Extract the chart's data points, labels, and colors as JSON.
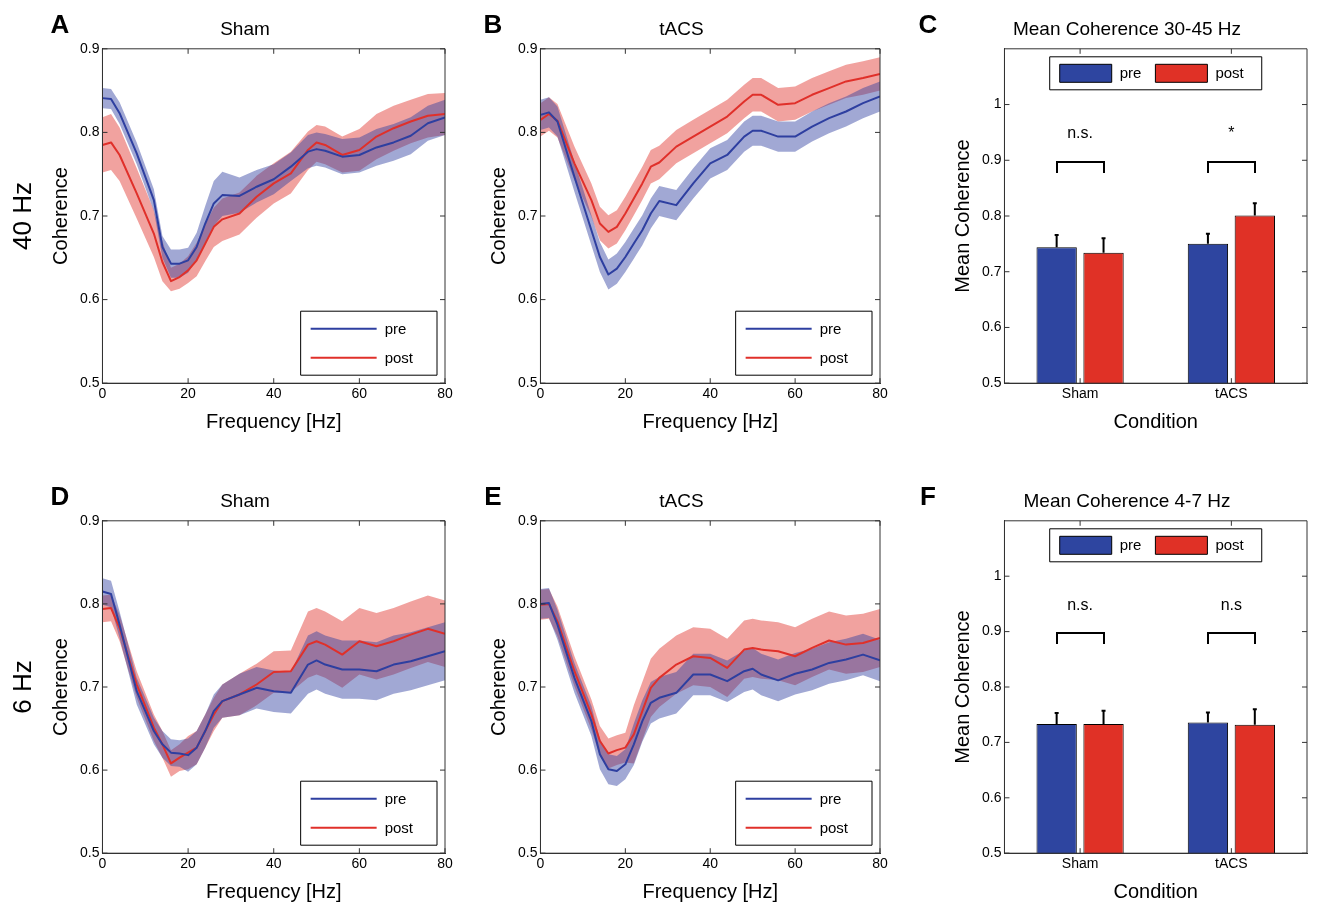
{
  "chart_data": [
    {
      "type": "line",
      "title": "Sham",
      "xlabel": "Frequency [Hz]",
      "ylabel": "Coherence",
      "annotations": [
        "A",
        "40 Hz"
      ],
      "legend": "bottom right",
      "xlim": [
        0,
        80
      ],
      "xticks": [
        0,
        20,
        40,
        60,
        80
      ],
      "ylim": [
        0.5,
        0.9
      ],
      "yticks": [
        0.5,
        0.6,
        0.7,
        0.8,
        0.9
      ],
      "x": [
        0,
        2,
        4,
        8,
        12,
        14,
        16,
        18,
        20,
        22,
        24,
        26,
        28,
        32,
        36,
        40,
        44,
        48,
        50,
        52,
        56,
        60,
        64,
        68,
        72,
        76,
        80
      ],
      "series": [
        {
          "name": "pre",
          "color": "#2e3fa0",
          "values": [
            0.841,
            0.84,
            0.823,
            0.775,
            0.719,
            0.663,
            0.643,
            0.643,
            0.647,
            0.663,
            0.691,
            0.715,
            0.725,
            0.724,
            0.735,
            0.744,
            0.759,
            0.777,
            0.78,
            0.778,
            0.771,
            0.773,
            0.782,
            0.788,
            0.796,
            0.811,
            0.818
          ],
          "lower": [
            0.829,
            0.828,
            0.81,
            0.762,
            0.706,
            0.65,
            0.626,
            0.626,
            0.632,
            0.648,
            0.668,
            0.688,
            0.7,
            0.704,
            0.716,
            0.726,
            0.742,
            0.757,
            0.76,
            0.758,
            0.75,
            0.752,
            0.76,
            0.766,
            0.774,
            0.79,
            0.797
          ],
          "upper": [
            0.853,
            0.852,
            0.836,
            0.788,
            0.732,
            0.676,
            0.66,
            0.66,
            0.662,
            0.68,
            0.712,
            0.742,
            0.753,
            0.746,
            0.755,
            0.762,
            0.776,
            0.797,
            0.8,
            0.798,
            0.792,
            0.794,
            0.804,
            0.81,
            0.818,
            0.832,
            0.839
          ]
        },
        {
          "name": "post",
          "color": "#e0302a",
          "values": [
            0.785,
            0.788,
            0.773,
            0.727,
            0.679,
            0.645,
            0.622,
            0.627,
            0.635,
            0.647,
            0.667,
            0.687,
            0.696,
            0.703,
            0.723,
            0.739,
            0.751,
            0.779,
            0.788,
            0.785,
            0.773,
            0.779,
            0.795,
            0.805,
            0.813,
            0.82,
            0.822
          ],
          "lower": [
            0.752,
            0.755,
            0.742,
            0.697,
            0.651,
            0.622,
            0.61,
            0.613,
            0.62,
            0.628,
            0.646,
            0.663,
            0.67,
            0.678,
            0.698,
            0.715,
            0.727,
            0.755,
            0.765,
            0.762,
            0.752,
            0.754,
            0.768,
            0.778,
            0.787,
            0.794,
            0.797
          ],
          "upper": [
            0.818,
            0.822,
            0.806,
            0.757,
            0.707,
            0.67,
            0.638,
            0.643,
            0.652,
            0.668,
            0.69,
            0.71,
            0.721,
            0.728,
            0.748,
            0.763,
            0.777,
            0.801,
            0.809,
            0.807,
            0.795,
            0.804,
            0.822,
            0.832,
            0.839,
            0.846,
            0.847
          ]
        }
      ]
    },
    {
      "type": "line",
      "title": "tACS",
      "xlabel": "Frequency [Hz]",
      "ylabel": "Coherence",
      "annotations": [
        "B"
      ],
      "legend": "bottom right",
      "xlim": [
        0,
        80
      ],
      "xticks": [
        0,
        20,
        40,
        60,
        80
      ],
      "ylim": [
        0.5,
        0.9
      ],
      "yticks": [
        0.5,
        0.6,
        0.7,
        0.8,
        0.9
      ],
      "x": [
        0,
        2,
        4,
        8,
        12,
        14,
        16,
        18,
        20,
        22,
        24,
        26,
        28,
        32,
        36,
        40,
        44,
        48,
        50,
        52,
        56,
        60,
        64,
        68,
        72,
        76,
        80
      ],
      "series": [
        {
          "name": "pre",
          "color": "#2e3fa0",
          "values": [
            0.821,
            0.824,
            0.813,
            0.747,
            0.683,
            0.651,
            0.63,
            0.637,
            0.651,
            0.667,
            0.683,
            0.703,
            0.718,
            0.713,
            0.739,
            0.763,
            0.773,
            0.795,
            0.802,
            0.802,
            0.795,
            0.795,
            0.807,
            0.817,
            0.825,
            0.835,
            0.843
          ],
          "lower": [
            0.803,
            0.806,
            0.795,
            0.729,
            0.665,
            0.633,
            0.612,
            0.619,
            0.633,
            0.649,
            0.665,
            0.685,
            0.7,
            0.695,
            0.721,
            0.745,
            0.755,
            0.777,
            0.784,
            0.784,
            0.777,
            0.777,
            0.789,
            0.799,
            0.807,
            0.817,
            0.825
          ],
          "upper": [
            0.839,
            0.842,
            0.831,
            0.765,
            0.701,
            0.669,
            0.648,
            0.655,
            0.669,
            0.685,
            0.701,
            0.721,
            0.736,
            0.731,
            0.757,
            0.781,
            0.791,
            0.813,
            0.82,
            0.82,
            0.813,
            0.813,
            0.825,
            0.835,
            0.843,
            0.853,
            0.861
          ]
        },
        {
          "name": "post",
          "color": "#e0302a",
          "values": [
            0.815,
            0.822,
            0.814,
            0.763,
            0.719,
            0.691,
            0.681,
            0.687,
            0.703,
            0.721,
            0.739,
            0.759,
            0.764,
            0.783,
            0.795,
            0.807,
            0.819,
            0.837,
            0.845,
            0.845,
            0.833,
            0.835,
            0.845,
            0.853,
            0.861,
            0.865,
            0.87
          ],
          "lower": [
            0.795,
            0.802,
            0.794,
            0.743,
            0.699,
            0.671,
            0.661,
            0.667,
            0.683,
            0.701,
            0.719,
            0.739,
            0.744,
            0.763,
            0.775,
            0.787,
            0.799,
            0.817,
            0.825,
            0.825,
            0.813,
            0.815,
            0.825,
            0.833,
            0.841,
            0.845,
            0.85
          ],
          "upper": [
            0.835,
            0.842,
            0.834,
            0.783,
            0.739,
            0.711,
            0.701,
            0.707,
            0.723,
            0.741,
            0.759,
            0.779,
            0.784,
            0.803,
            0.815,
            0.827,
            0.839,
            0.857,
            0.865,
            0.865,
            0.853,
            0.855,
            0.865,
            0.873,
            0.881,
            0.885,
            0.89
          ]
        }
      ]
    },
    {
      "type": "bar",
      "title": "Mean Coherence 30-45 Hz",
      "xlabel": "Condition",
      "ylabel": "Mean Coherence",
      "annotations": [
        "C",
        "n.s.",
        "*"
      ],
      "legend": "top",
      "categories": [
        "Sham",
        "tACS"
      ],
      "ylim": [
        0.5,
        1.1
      ],
      "yticks": [
        0.5,
        0.6,
        0.7,
        0.8,
        0.9,
        1
      ],
      "series": [
        {
          "name": "pre",
          "color": "#2e45a0",
          "values": [
            0.744,
            0.75
          ],
          "errors": [
            [
              0.744,
              0.766
            ],
            [
              0.75,
              0.768
            ]
          ]
        },
        {
          "name": "post",
          "color": "#e03126",
          "values": [
            0.734,
            0.801
          ],
          "errors": [
            [
              0.734,
              0.76
            ],
            [
              0.801,
              0.823
            ]
          ]
        }
      ]
    },
    {
      "type": "line",
      "title": "Sham",
      "xlabel": "Frequency [Hz]",
      "ylabel": "Coherence",
      "annotations": [
        "D",
        "6 Hz"
      ],
      "legend": "bottom right",
      "xlim": [
        0,
        80
      ],
      "xticks": [
        0,
        20,
        40,
        60,
        80
      ],
      "ylim": [
        0.5,
        0.9
      ],
      "yticks": [
        0.5,
        0.6,
        0.7,
        0.8,
        0.9
      ],
      "x": [
        0,
        2,
        4,
        8,
        12,
        14,
        16,
        18,
        20,
        22,
        24,
        26,
        28,
        32,
        36,
        40,
        44,
        48,
        50,
        52,
        56,
        60,
        64,
        68,
        72,
        76,
        80
      ],
      "series": [
        {
          "name": "pre",
          "color": "#2e3fa0",
          "values": [
            0.815,
            0.812,
            0.775,
            0.695,
            0.647,
            0.631,
            0.621,
            0.62,
            0.618,
            0.627,
            0.647,
            0.671,
            0.683,
            0.691,
            0.699,
            0.695,
            0.693,
            0.727,
            0.732,
            0.727,
            0.721,
            0.721,
            0.719,
            0.727,
            0.731,
            0.737,
            0.743
          ],
          "lower": [
            0.799,
            0.796,
            0.759,
            0.679,
            0.631,
            0.615,
            0.605,
            0.604,
            0.598,
            0.607,
            0.627,
            0.651,
            0.663,
            0.666,
            0.674,
            0.67,
            0.668,
            0.692,
            0.697,
            0.692,
            0.686,
            0.686,
            0.684,
            0.692,
            0.696,
            0.702,
            0.708
          ],
          "upper": [
            0.831,
            0.828,
            0.791,
            0.711,
            0.663,
            0.647,
            0.637,
            0.636,
            0.638,
            0.647,
            0.667,
            0.691,
            0.703,
            0.716,
            0.724,
            0.72,
            0.718,
            0.762,
            0.767,
            0.762,
            0.756,
            0.756,
            0.754,
            0.762,
            0.766,
            0.772,
            0.778
          ]
        },
        {
          "name": "post",
          "color": "#e0302a",
          "values": [
            0.794,
            0.795,
            0.771,
            0.703,
            0.651,
            0.631,
            0.608,
            0.615,
            0.621,
            0.627,
            0.647,
            0.667,
            0.683,
            0.691,
            0.703,
            0.718,
            0.719,
            0.751,
            0.755,
            0.751,
            0.739,
            0.755,
            0.749,
            0.755,
            0.763,
            0.77,
            0.764
          ],
          "lower": [
            0.778,
            0.779,
            0.755,
            0.687,
            0.635,
            0.615,
            0.592,
            0.599,
            0.601,
            0.607,
            0.627,
            0.647,
            0.663,
            0.666,
            0.678,
            0.693,
            0.694,
            0.711,
            0.715,
            0.711,
            0.699,
            0.715,
            0.709,
            0.715,
            0.723,
            0.73,
            0.724
          ],
          "upper": [
            0.81,
            0.811,
            0.787,
            0.719,
            0.667,
            0.647,
            0.624,
            0.631,
            0.641,
            0.647,
            0.667,
            0.687,
            0.703,
            0.716,
            0.728,
            0.743,
            0.744,
            0.791,
            0.795,
            0.791,
            0.779,
            0.795,
            0.789,
            0.795,
            0.803,
            0.81,
            0.804
          ]
        }
      ]
    },
    {
      "type": "line",
      "title": "tACS",
      "xlabel": "Frequency [Hz]",
      "ylabel": "Coherence",
      "annotations": [
        "E"
      ],
      "legend": "bottom right",
      "xlim": [
        0,
        80
      ],
      "xticks": [
        0,
        20,
        40,
        60,
        80
      ],
      "ylim": [
        0.5,
        0.9
      ],
      "yticks": [
        0.5,
        0.6,
        0.7,
        0.8,
        0.9
      ],
      "x": [
        0,
        2,
        4,
        8,
        12,
        14,
        16,
        18,
        20,
        22,
        24,
        26,
        28,
        32,
        36,
        40,
        44,
        48,
        50,
        52,
        56,
        60,
        64,
        68,
        72,
        76,
        80
      ],
      "series": [
        {
          "name": "pre",
          "color": "#2e3fa0",
          "values": [
            0.8,
            0.801,
            0.775,
            0.711,
            0.659,
            0.619,
            0.601,
            0.599,
            0.607,
            0.631,
            0.659,
            0.681,
            0.687,
            0.693,
            0.715,
            0.715,
            0.707,
            0.719,
            0.722,
            0.715,
            0.708,
            0.716,
            0.721,
            0.729,
            0.733,
            0.739,
            0.732
          ],
          "lower": [
            0.782,
            0.783,
            0.757,
            0.693,
            0.641,
            0.601,
            0.583,
            0.581,
            0.589,
            0.606,
            0.634,
            0.656,
            0.662,
            0.668,
            0.69,
            0.69,
            0.682,
            0.694,
            0.697,
            0.69,
            0.683,
            0.691,
            0.696,
            0.704,
            0.708,
            0.714,
            0.707
          ],
          "upper": [
            0.818,
            0.819,
            0.793,
            0.729,
            0.677,
            0.637,
            0.619,
            0.617,
            0.625,
            0.656,
            0.684,
            0.706,
            0.712,
            0.718,
            0.74,
            0.74,
            0.732,
            0.744,
            0.747,
            0.74,
            0.733,
            0.741,
            0.746,
            0.754,
            0.758,
            0.764,
            0.757
          ]
        },
        {
          "name": "post",
          "color": "#e0302a",
          "values": [
            0.799,
            0.8,
            0.779,
            0.719,
            0.667,
            0.635,
            0.62,
            0.624,
            0.627,
            0.643,
            0.671,
            0.699,
            0.711,
            0.727,
            0.737,
            0.735,
            0.723,
            0.745,
            0.747,
            0.745,
            0.743,
            0.737,
            0.747,
            0.756,
            0.751,
            0.753,
            0.759
          ],
          "lower": [
            0.781,
            0.782,
            0.761,
            0.701,
            0.649,
            0.617,
            0.602,
            0.606,
            0.609,
            0.608,
            0.636,
            0.664,
            0.676,
            0.692,
            0.702,
            0.7,
            0.688,
            0.71,
            0.712,
            0.71,
            0.708,
            0.702,
            0.712,
            0.721,
            0.716,
            0.718,
            0.724
          ],
          "upper": [
            0.817,
            0.818,
            0.797,
            0.737,
            0.685,
            0.653,
            0.638,
            0.642,
            0.645,
            0.678,
            0.706,
            0.734,
            0.746,
            0.762,
            0.772,
            0.77,
            0.758,
            0.78,
            0.782,
            0.78,
            0.778,
            0.772,
            0.782,
            0.791,
            0.786,
            0.788,
            0.794
          ]
        }
      ]
    },
    {
      "type": "bar",
      "title": "Mean Coherence 4-7 Hz",
      "xlabel": "Condition",
      "ylabel": "Mean Coherence",
      "annotations": [
        "F",
        "n.s.",
        "n.s"
      ],
      "legend": "top",
      "categories": [
        "Sham",
        "tACS"
      ],
      "ylim": [
        0.5,
        1.1
      ],
      "yticks": [
        0.5,
        0.6,
        0.7,
        0.8,
        0.9,
        1
      ],
      "series": [
        {
          "name": "pre",
          "color": "#2e45a0",
          "values": [
            0.733,
            0.736
          ],
          "errors": [
            [
              0.733,
              0.753
            ],
            [
              0.736,
              0.754
            ]
          ]
        },
        {
          "name": "post",
          "color": "#e03126",
          "values": [
            0.733,
            0.732
          ],
          "errors": [
            [
              0.733,
              0.757
            ],
            [
              0.732,
              0.76
            ]
          ]
        }
      ]
    }
  ]
}
